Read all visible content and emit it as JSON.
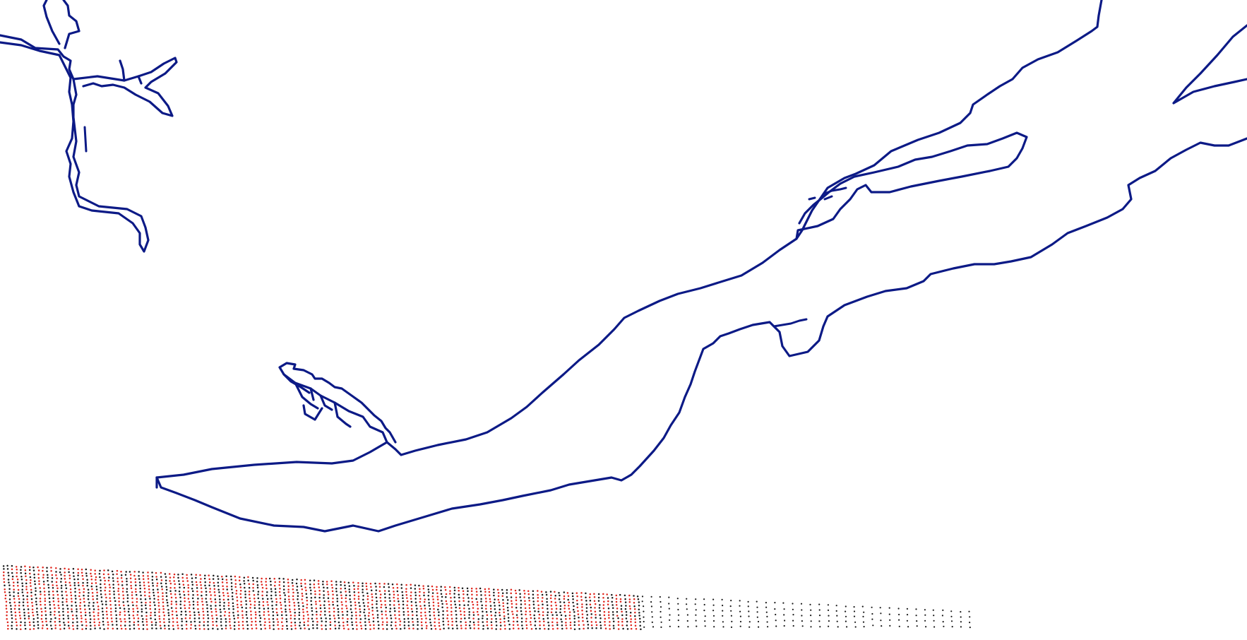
{
  "map": {
    "colors": {
      "background": "#ffffff",
      "coastline": "#0c1a86",
      "sounding_red": "#e0241b",
      "sounding_black": "#1a1a1a"
    },
    "layers": [
      {
        "name": "coastline",
        "color": "#0c1a86"
      },
      {
        "name": "survey-points",
        "colors": [
          "#e0241b",
          "#1a1a1a"
        ]
      }
    ]
  }
}
